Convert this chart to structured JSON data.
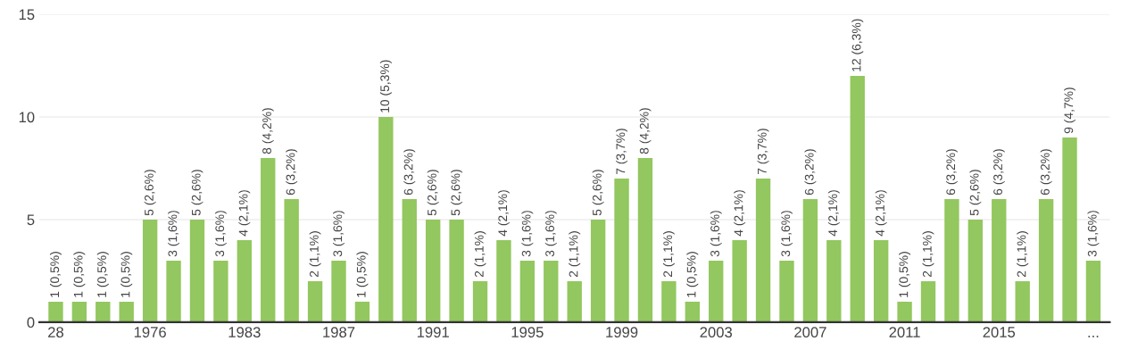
{
  "chart_data": {
    "type": "bar",
    "categories": [
      "28",
      null,
      null,
      null,
      "1976",
      null,
      null,
      null,
      "1983",
      null,
      null,
      null,
      "1987",
      null,
      null,
      null,
      "1991",
      null,
      null,
      null,
      "1995",
      null,
      null,
      null,
      "1999",
      null,
      null,
      null,
      "2003",
      null,
      null,
      null,
      "2007",
      null,
      null,
      null,
      "2011",
      null,
      null,
      null,
      "2015",
      null,
      null,
      null,
      "..."
    ],
    "values": [
      1,
      1,
      1,
      1,
      5,
      3,
      5,
      3,
      4,
      8,
      6,
      2,
      3,
      1,
      10,
      6,
      5,
      5,
      2,
      4,
      3,
      3,
      2,
      5,
      7,
      8,
      2,
      1,
      3,
      4,
      7,
      3,
      6,
      4,
      12,
      4,
      1,
      2,
      6,
      5,
      6,
      2,
      6,
      9,
      3
    ],
    "value_labels": [
      "1 (0,5%)",
      "1 (0,5%)",
      "1 (0,5%)",
      "1 (0,5%)",
      "5 (2,6%)",
      "3 (1,6%)",
      "5 (2,6%)",
      "3 (1,6%)",
      "4 (2,1%)",
      "8 (4,2%)",
      "6 (3,2%)",
      "2 (1,1%)",
      "3 (1,6%)",
      "1 (0,5%)",
      "10 (5,3%)",
      "6 (3,2%)",
      "5 (2,6%)",
      "5 (2,6%)",
      "2 (1,1%)",
      "4 (2,1%)",
      "3 (1,6%)",
      "3 (1,6%)",
      "2 (1,1%)",
      "5 (2,6%)",
      "7 (3,7%)",
      "8 (4,2%)",
      "2 (1,1%)",
      "1 (0,5%)",
      "3 (1,6%)",
      "4 (2,1%)",
      "7 (3,7%)",
      "3 (1,6%)",
      "6 (3,2%)",
      "4 (2,1%)",
      "12 (6,3%)",
      "4 (2,1%)",
      "1 (0,5%)",
      "2 (1,1%)",
      "6 (3,2%)",
      "5 (2,6%)",
      "6 (3,2%)",
      "2 (1,1%)",
      "6 (3,2%)",
      "9 (4,7%)",
      "3 (1,6%)"
    ],
    "color": "#93c75f",
    "ylim": [
      0,
      15
    ],
    "yticks": [
      0,
      5,
      10,
      15
    ],
    "grid": "y"
  }
}
